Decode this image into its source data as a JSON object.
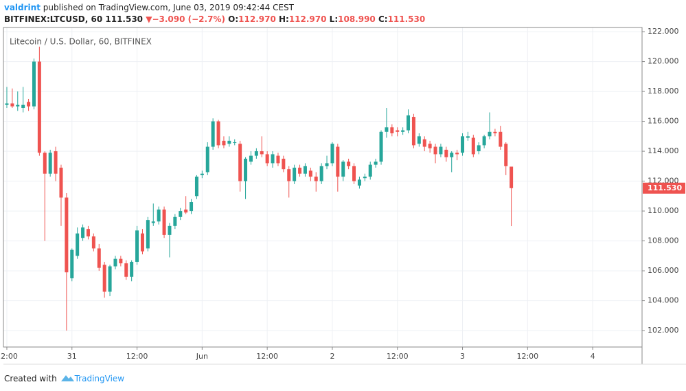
{
  "header": {
    "author": "valdrint",
    "published": "published on TradingView.com, June 03, 2019 09:42:44 CEST",
    "symbol": "BITFINEX:LTCUSD, 60",
    "last": "111.530",
    "arrow": "▼",
    "change": "−3.090 (−2.7%)",
    "o_label": "O:",
    "o": "112.970",
    "h_label": "H:",
    "h": "112.970",
    "l_label": "L:",
    "l": "108.990",
    "c_label": "C:",
    "c": "111.530"
  },
  "footer": {
    "created": "Created with",
    "brand": "TradingView"
  },
  "chart_data": {
    "type": "candlestick",
    "title": "Litecoin / U.S. Dollar, 60, BITFINEX",
    "up_color": "#26a69a",
    "down_color": "#ef5350",
    "grid": true,
    "ylim": [
      100.9,
      122.28
    ],
    "yticks": [
      {
        "value": 102,
        "label": "102.000"
      },
      {
        "value": 104,
        "label": "104.000"
      },
      {
        "value": 106,
        "label": "106.000"
      },
      {
        "value": 108,
        "label": "108.000"
      },
      {
        "value": 110,
        "label": "110.000"
      },
      {
        "value": 112,
        "label": "112.000"
      },
      {
        "value": 114,
        "label": "114.000"
      },
      {
        "value": 116,
        "label": "116.000"
      },
      {
        "value": 118,
        "label": "118.000"
      },
      {
        "value": 120,
        "label": "120.000"
      },
      {
        "value": 122,
        "label": "122.000"
      }
    ],
    "xlim": [
      -0.63,
      117.1
    ],
    "xticks": [
      {
        "value": 0,
        "label": "12:00"
      },
      {
        "value": 12,
        "label": "31"
      },
      {
        "value": 24,
        "label": "12:00"
      },
      {
        "value": 36,
        "label": "Jun"
      },
      {
        "value": 48,
        "label": "12:00"
      },
      {
        "value": 60,
        "label": "2"
      },
      {
        "value": 72,
        "label": "12:00"
      },
      {
        "value": 84,
        "label": "3"
      },
      {
        "value": 96,
        "label": "12:00"
      },
      {
        "value": 108,
        "label": "4"
      }
    ],
    "last_price": {
      "value": 111.53,
      "label": "111.530"
    },
    "open": [
      117.1,
      117.2,
      117.0,
      116.9,
      117.3,
      117.0,
      120.0,
      113.9,
      112.5,
      114.0,
      112.9,
      110.9,
      105.5,
      107.0,
      108.2,
      108.8,
      108.3,
      107.5,
      106.4,
      104.6,
      106.3,
      106.8,
      106.5,
      105.6,
      106.6,
      108.5,
      107.5,
      109.2,
      109.3,
      110.1,
      108.4,
      109.0,
      109.6,
      110.1,
      110.0,
      111.0,
      112.4,
      112.6,
      114.3,
      116.0,
      114.7,
      114.5,
      114.6,
      114.5,
      112.0,
      113.3,
      113.7,
      114.0,
      113.8,
      113.2,
      113.7,
      113.5,
      112.8,
      112.0,
      112.9,
      112.5,
      112.7,
      112.3,
      112.0,
      113.0,
      113.2,
      114.3,
      112.3,
      113.3,
      113.0,
      111.7,
      112.2,
      112.3,
      113.1,
      113.3,
      115.3,
      115.6,
      115.4,
      115.3,
      115.4,
      116.3,
      114.5,
      114.8,
      114.5,
      114.3,
      113.8,
      114.1,
      113.6,
      113.9,
      113.9,
      114.9,
      114.9,
      114.0,
      114.4,
      115.0,
      115.3,
      115.3,
      114.5,
      112.97
    ],
    "high": [
      118.3,
      118.2,
      118.0,
      118.3,
      117.5,
      120.2,
      121.0,
      114.0,
      114.1,
      114.3,
      113.1,
      111.2,
      107.5,
      108.9,
      109.1,
      109.0,
      108.5,
      107.8,
      106.6,
      106.4,
      107.0,
      107.0,
      106.7,
      106.7,
      109.0,
      108.8,
      109.6,
      110.5,
      110.3,
      110.3,
      109.2,
      109.8,
      110.2,
      111.0,
      110.8,
      112.4,
      112.7,
      114.6,
      116.2,
      116.1,
      115.0,
      115.0,
      114.8,
      114.7,
      113.6,
      114.0,
      114.2,
      115.0,
      114.0,
      114.0,
      113.9,
      113.7,
      113.0,
      113.1,
      113.1,
      113.2,
      112.9,
      112.6,
      113.2,
      113.7,
      114.6,
      114.5,
      113.4,
      113.5,
      113.2,
      112.3,
      112.5,
      113.3,
      113.5,
      115.4,
      116.9,
      115.8,
      115.6,
      115.6,
      116.8,
      116.5,
      115.2,
      115.0,
      114.7,
      114.5,
      114.5,
      114.3,
      114.0,
      114.1,
      115.2,
      115.3,
      115.1,
      114.6,
      115.1,
      116.6,
      115.5,
      115.7,
      114.6,
      112.97
    ],
    "low": [
      116.9,
      116.9,
      116.7,
      116.6,
      116.7,
      116.8,
      113.7,
      108.0,
      112.3,
      112.0,
      109.0,
      102.0,
      105.3,
      106.8,
      108.0,
      108.1,
      107.3,
      106.0,
      104.2,
      104.3,
      106.1,
      106.3,
      105.4,
      105.3,
      106.4,
      107.1,
      107.3,
      109.0,
      109.1,
      108.2,
      106.9,
      108.8,
      109.4,
      109.8,
      109.8,
      110.8,
      112.2,
      112.4,
      114.1,
      114.2,
      114.2,
      114.3,
      114.4,
      111.3,
      110.8,
      113.1,
      113.5,
      113.6,
      113.0,
      112.9,
      113.0,
      112.6,
      110.9,
      111.8,
      112.3,
      112.3,
      112.0,
      111.3,
      111.8,
      112.8,
      113.0,
      111.3,
      112.0,
      112.8,
      111.8,
      111.5,
      112.0,
      112.1,
      112.9,
      113.1,
      114.9,
      115.0,
      115.0,
      115.1,
      115.2,
      114.2,
      114.3,
      114.0,
      113.9,
      113.2,
      113.6,
      113.3,
      112.6,
      113.4,
      113.7,
      114.7,
      113.6,
      113.8,
      114.2,
      114.8,
      115.0,
      114.1,
      112.4,
      108.99
    ],
    "close": [
      117.2,
      117.0,
      117.1,
      117.1,
      117.0,
      120.0,
      113.9,
      112.5,
      113.9,
      112.5,
      110.9,
      105.9,
      107.4,
      108.5,
      108.9,
      108.3,
      107.5,
      106.2,
      104.6,
      106.3,
      106.8,
      106.5,
      105.6,
      106.6,
      108.7,
      107.3,
      109.4,
      109.3,
      110.1,
      108.4,
      109.0,
      109.6,
      110.0,
      109.9,
      110.6,
      112.3,
      112.5,
      114.3,
      116.0,
      114.4,
      114.4,
      114.7,
      114.6,
      112.0,
      113.5,
      113.7,
      114.0,
      113.8,
      113.2,
      113.8,
      113.2,
      112.8,
      112.0,
      112.9,
      112.5,
      113.0,
      112.3,
      112.0,
      113.0,
      113.2,
      114.5,
      112.3,
      113.3,
      113.0,
      112.0,
      112.1,
      112.3,
      113.1,
      113.3,
      115.3,
      115.6,
      115.2,
      115.3,
      115.4,
      116.4,
      114.4,
      115.0,
      114.3,
      114.2,
      113.8,
      114.3,
      113.6,
      113.9,
      113.8,
      115.0,
      115.0,
      113.8,
      114.4,
      115.0,
      115.3,
      115.2,
      114.3,
      113.0,
      111.53
    ]
  }
}
